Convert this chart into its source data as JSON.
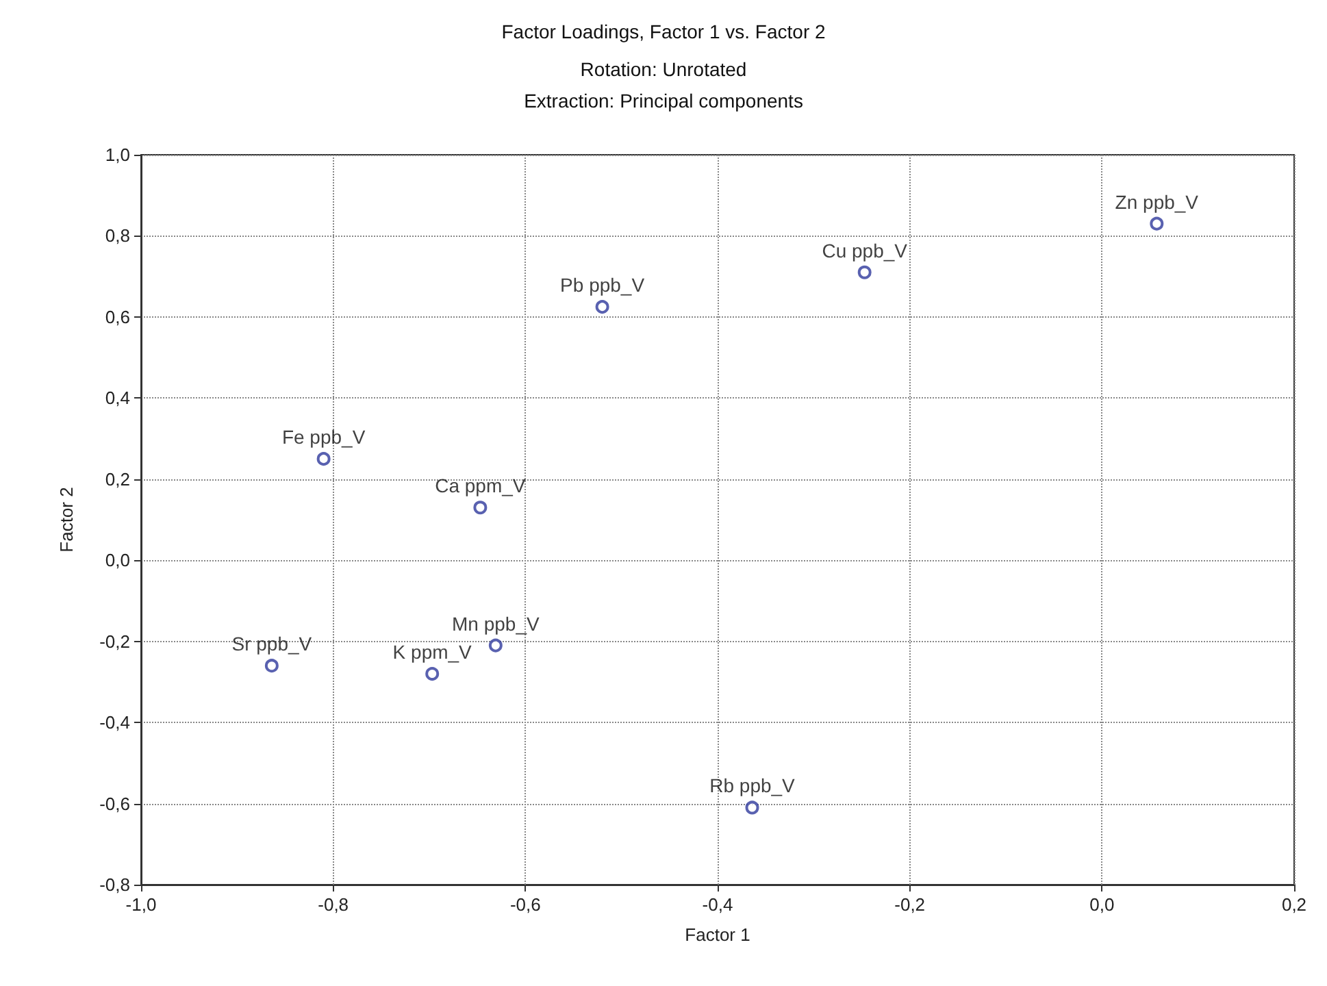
{
  "chart_data": {
    "type": "scatter",
    "title": "Factor Loadings, Factor 1 vs. Factor 2",
    "subtitle": "Rotation: Unrotated\nExtraction: Principal components",
    "xlabel": "Factor 1",
    "ylabel": "Factor 2",
    "x": [
      0.057,
      -0.247,
      -0.52,
      -0.81,
      -0.647,
      -0.631,
      -0.697,
      -0.864,
      -0.364
    ],
    "series": [
      {
        "color": "#2f3a9c",
        "values": [
          0.83,
          0.71,
          0.625,
          0.25,
          0.13,
          -0.21,
          -0.28,
          -0.26,
          -0.61
        ],
        "value_labels": [
          "Zn ppb_V",
          "Cu ppb_V",
          "Pb ppb_V",
          "Fe ppb_V",
          "Ca ppm_V",
          "Mn ppb_V",
          "K ppm_V",
          "Sr ppb_V",
          "Rb ppb_V"
        ]
      }
    ],
    "xlim": [
      -1.0,
      0.2
    ],
    "xticks": [
      {
        "value": -1.0,
        "label": "-1,0"
      },
      {
        "value": -0.8,
        "label": "-0,8"
      },
      {
        "value": -0.6,
        "label": "-0,6"
      },
      {
        "value": -0.4,
        "label": "-0,4"
      },
      {
        "value": -0.2,
        "label": "-0,2"
      },
      {
        "value": 0.0,
        "label": "0,0"
      },
      {
        "value": 0.2,
        "label": "0,2"
      }
    ],
    "ylim": [
      -0.8,
      1.0
    ],
    "yticks": [
      {
        "value": -0.8,
        "label": "-0,8"
      },
      {
        "value": -0.6,
        "label": "-0,6"
      },
      {
        "value": -0.4,
        "label": "-0,4"
      },
      {
        "value": -0.2,
        "label": "-0,2"
      },
      {
        "value": 0.0,
        "label": "0,0"
      },
      {
        "value": 0.2,
        "label": "0,2"
      },
      {
        "value": 0.4,
        "label": "0,4"
      },
      {
        "value": 0.6,
        "label": "0,6"
      },
      {
        "value": 0.8,
        "label": "0,8"
      },
      {
        "value": 1.0,
        "label": "1,0"
      }
    ],
    "grid": true,
    "marker": "circle"
  }
}
